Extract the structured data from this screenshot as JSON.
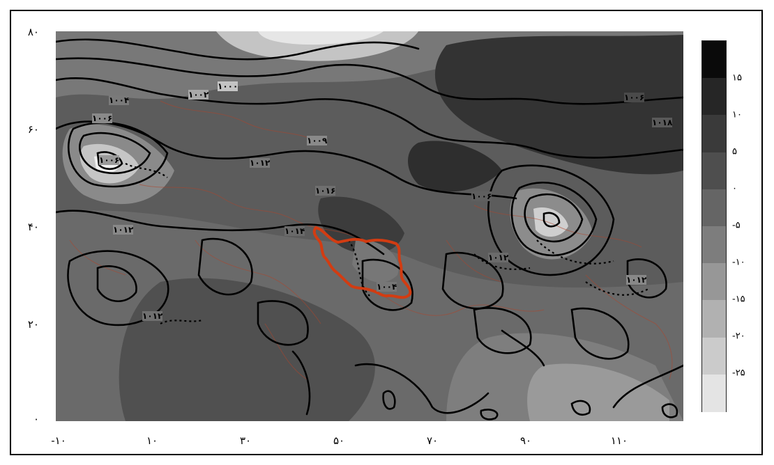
{
  "y_axis_labels": [
    "۸۰",
    "۶۰",
    "۴۰",
    "۲۰",
    "۰"
  ],
  "x_axis_labels": [
    "-۱۰",
    "۱۰",
    "۳۰",
    "۵۰",
    "۷۰",
    "۹۰",
    "۱۱۰"
  ],
  "legend": {
    "labels": [
      "۱۵",
      "۱۰",
      "۵",
      "۰",
      "-۵",
      "-۱۰",
      "-۱۵",
      "-۲۰",
      "-۲۵"
    ],
    "colors": [
      "#0a0a0a",
      "#262626",
      "#3a3a3a",
      "#4e4e4e",
      "#656565",
      "#7d7d7d",
      "#979797",
      "#b1b1b1",
      "#cbcbcb",
      "#e4e4e4"
    ]
  },
  "contour_labels": [
    "۱۰۰۴",
    "۱۰۰۲",
    "۱۰۰۰",
    "۱۰۰۶",
    "۱۰۰۶",
    "۱۰۰۹",
    "۱۰۱۲",
    "۱۰۱۸",
    "۱۰۰۶",
    "۱۰۱۲",
    "۱۰۱۶",
    "۱۰۰۶",
    "۱۰۱۴",
    "۱۰۱۲",
    "۱۰۱۲",
    "۱۰۰۴",
    "۱۰۱۲"
  ],
  "colors": {
    "map_fill": "#5a5a5a",
    "contour": "#000000",
    "border_lines": "#b0442a",
    "iran_outline": "#d23c12"
  }
}
